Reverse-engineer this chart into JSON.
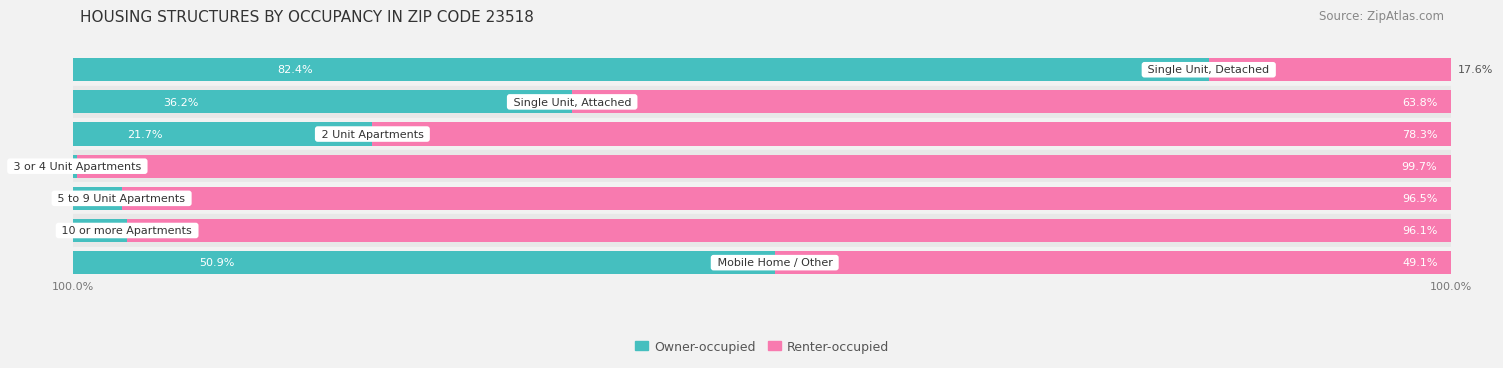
{
  "title": "HOUSING STRUCTURES BY OCCUPANCY IN ZIP CODE 23518",
  "source": "Source: ZipAtlas.com",
  "categories": [
    "Single Unit, Detached",
    "Single Unit, Attached",
    "2 Unit Apartments",
    "3 or 4 Unit Apartments",
    "5 to 9 Unit Apartments",
    "10 or more Apartments",
    "Mobile Home / Other"
  ],
  "owner_pct": [
    82.4,
    36.2,
    21.7,
    0.29,
    3.5,
    3.9,
    50.9
  ],
  "renter_pct": [
    17.6,
    63.8,
    78.3,
    99.7,
    96.5,
    96.1,
    49.1
  ],
  "owner_color": "#45bfbf",
  "renter_color": "#f87aaf",
  "row_bg_colors": [
    "#f2f2f2",
    "#e8e8e8"
  ],
  "title_fontsize": 11,
  "source_fontsize": 8.5,
  "label_fontsize": 8,
  "tick_fontsize": 8,
  "legend_fontsize": 9,
  "bar_height": 0.72
}
